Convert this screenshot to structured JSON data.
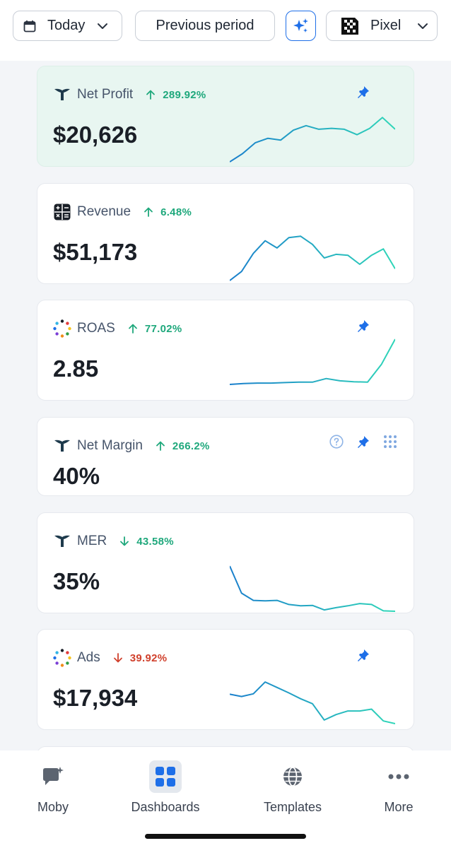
{
  "toolbar": {
    "date_label": "Today",
    "compare_label": "Previous period",
    "source_label": "Pixel"
  },
  "cards": [
    {
      "title": "Net Profit",
      "delta": "289.92%",
      "direction": "up",
      "value": "$20,626",
      "pinned": true,
      "spark": [
        0,
        0.18,
        0.42,
        0.52,
        0.48,
        0.7,
        0.8,
        0.72,
        0.74,
        0.72,
        0.6,
        0.74,
        0.98,
        0.72
      ]
    },
    {
      "title": "Revenue",
      "delta": "6.48%",
      "direction": "up",
      "value": "$51,173",
      "pinned": false,
      "spark": [
        0,
        0.2,
        0.6,
        0.88,
        0.72,
        0.95,
        0.98,
        0.8,
        0.5,
        0.58,
        0.56,
        0.36,
        0.56,
        0.7,
        0.26
      ]
    },
    {
      "title": "ROAS",
      "delta": "77.02%",
      "direction": "up",
      "value": "2.85",
      "pinned": true,
      "spark": [
        0,
        0.02,
        0.03,
        0.03,
        0.04,
        0.05,
        0.05,
        0.13,
        0.08,
        0.06,
        0.05,
        0.44,
        1.0
      ]
    },
    {
      "title": "Net Margin",
      "delta": "266.2%",
      "direction": "up",
      "value": "40%",
      "pinned": true
    },
    {
      "title": "MER",
      "delta": "43.58%",
      "direction": "down",
      "value": "35%",
      "pinned": false,
      "spark": [
        1.0,
        0.4,
        0.24,
        0.23,
        0.24,
        0.15,
        0.12,
        0.13,
        0.03,
        0.08,
        0.12,
        0.17,
        0.15,
        0.01,
        0.0
      ]
    },
    {
      "title": "Ads",
      "delta": "39.92%",
      "direction": "down",
      "value": "$17,934",
      "pinned": true,
      "spark": [
        0.65,
        0.6,
        0.66,
        0.92,
        0.8,
        0.68,
        0.55,
        0.44,
        0.08,
        0.2,
        0.28,
        0.28,
        0.32,
        0.06,
        0.0
      ]
    }
  ],
  "nav": [
    {
      "label": "Moby",
      "icon": "chat-sparkle-icon",
      "active": false
    },
    {
      "label": "Dashboards",
      "icon": "grid-icon",
      "active": true
    },
    {
      "label": "Templates",
      "icon": "globe-icon",
      "active": false
    },
    {
      "label": "More",
      "icon": "more-icon",
      "active": false
    }
  ],
  "colors": {
    "accent": "#1e6fe8",
    "up": "#1fa87c",
    "down": "#d0402c",
    "spark_start": "#1a7fcc",
    "spark_end": "#2fd6b8",
    "highlight_bg": "#e8f6f1"
  }
}
